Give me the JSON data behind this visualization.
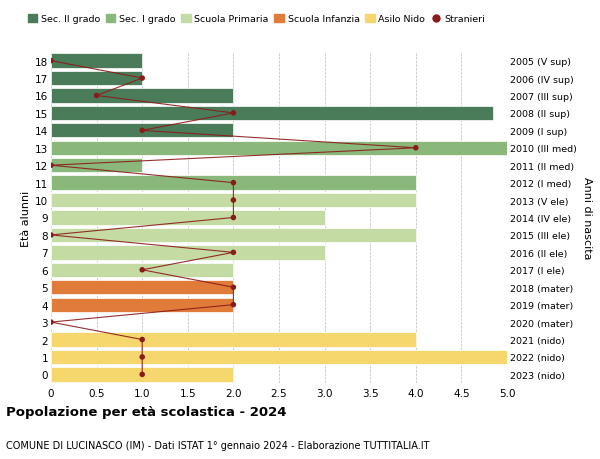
{
  "ages": [
    18,
    17,
    16,
    15,
    14,
    13,
    12,
    11,
    10,
    9,
    8,
    7,
    6,
    5,
    4,
    3,
    2,
    1,
    0
  ],
  "years": [
    "2005 (V sup)",
    "2006 (IV sup)",
    "2007 (III sup)",
    "2008 (II sup)",
    "2009 (I sup)",
    "2010 (III med)",
    "2011 (II med)",
    "2012 (I med)",
    "2013 (V ele)",
    "2014 (IV ele)",
    "2015 (III ele)",
    "2016 (II ele)",
    "2017 (I ele)",
    "2018 (mater)",
    "2019 (mater)",
    "2020 (mater)",
    "2021 (nido)",
    "2022 (nido)",
    "2023 (nido)"
  ],
  "bar_values": [
    1,
    1,
    2,
    4.85,
    2,
    5.2,
    1,
    4,
    4,
    3,
    4,
    3,
    2,
    2,
    2,
    0,
    4,
    5.2,
    2
  ],
  "bar_colors": [
    "#4a7c59",
    "#4a7c59",
    "#4a7c59",
    "#4a7c59",
    "#4a7c59",
    "#8ab87a",
    "#8ab87a",
    "#8ab87a",
    "#c5dba4",
    "#c5dba4",
    "#c5dba4",
    "#c5dba4",
    "#c5dba4",
    "#e07b39",
    "#e07b39",
    "#e07b39",
    "#f5d76e",
    "#f5d76e",
    "#f5d76e"
  ],
  "stranieri_values": [
    0,
    1,
    0.5,
    2,
    1,
    4,
    0,
    2,
    2,
    2,
    0,
    2,
    1,
    2,
    2,
    0,
    1,
    1,
    1
  ],
  "stranieri_color": "#8b1a1a",
  "legend_labels": [
    "Sec. II grado",
    "Sec. I grado",
    "Scuola Primaria",
    "Scuola Infanzia",
    "Asilo Nido",
    "Stranieri"
  ],
  "legend_colors": [
    "#4a7c59",
    "#8ab87a",
    "#c5dba4",
    "#e07b39",
    "#f5d76e",
    "#8b1a1a"
  ],
  "title": "Popolazione per età scolastica - 2024",
  "subtitle": "COMUNE DI LUCINASCO (IM) - Dati ISTAT 1° gennaio 2024 - Elaborazione TUTTITALIA.IT",
  "ylabel_left": "Età alunni",
  "ylabel_right": "Anni di nascita",
  "xlim": [
    0,
    5.0
  ],
  "xticks": [
    0,
    0.5,
    1.0,
    1.5,
    2.0,
    2.5,
    3.0,
    3.5,
    4.0,
    4.5,
    5.0
  ],
  "xtick_labels": [
    "0",
    "0.5",
    "1.0",
    "1.5",
    "2.0",
    "2.5",
    "3.0",
    "3.5",
    "4.0",
    "4.5",
    "5.0"
  ],
  "bg_color": "#ffffff",
  "grid_color": "#bbbbbb",
  "bar_height": 0.82
}
